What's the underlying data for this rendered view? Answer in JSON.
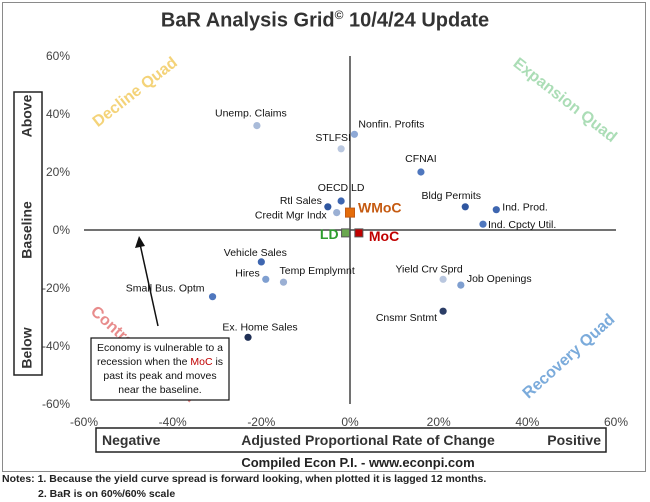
{
  "chart_data": {
    "type": "scatter",
    "title": "BaR Analysis Grid",
    "title_mark": "©",
    "title_suffix": " 10/4/24 Update",
    "xlim": [
      -60,
      60
    ],
    "ylim": [
      -60,
      60
    ],
    "x_ticks": [
      -60,
      -40,
      -20,
      0,
      20,
      40,
      60
    ],
    "y_ticks": [
      -60,
      -40,
      -20,
      0,
      20,
      40,
      60
    ],
    "x_tick_labels": [
      "-60%",
      "-40%",
      "-20%",
      "0%",
      "20%",
      "40%",
      "60%"
    ],
    "y_tick_labels": [
      "-60%",
      "-40%",
      "-20%",
      "0%",
      "20%",
      "40%",
      "60%"
    ],
    "grid": false,
    "x_axis": {
      "left_label": "Negative",
      "center_label": "Adjusted Proportional Rate of Change",
      "right_label": "Positive"
    },
    "y_axis": {
      "top_label": "Above",
      "center_label": "Baseline",
      "bottom_label": "Below"
    },
    "quadrants": [
      {
        "name": "Decline Quad",
        "position": "top-left",
        "color": "#f0c44c"
      },
      {
        "name": "Expansion Quad",
        "position": "top-right",
        "color": "#8fd19e"
      },
      {
        "name": "Contraction Quad",
        "position": "bottom-left",
        "color": "#e06666"
      },
      {
        "name": "Recovery Quad",
        "position": "bottom-right",
        "color": "#4f8fcf"
      }
    ],
    "points": [
      {
        "label": "Unemp. Claims",
        "x": -21,
        "y": 36,
        "color": "#a9bbd9"
      },
      {
        "label": "Nonfin. Profits",
        "x": 1,
        "y": 33,
        "color": "#8ea9d6"
      },
      {
        "label": "STLFSI",
        "x": -2,
        "y": 28,
        "color": "#b9c7df"
      },
      {
        "label": "CFNAI",
        "x": 16,
        "y": 20,
        "color": "#4f77be"
      },
      {
        "label": "OECD LD",
        "x": -2,
        "y": 10,
        "color": "#3e66b0"
      },
      {
        "label": "Rtl Sales",
        "x": -5,
        "y": 8,
        "color": "#2f56a0"
      },
      {
        "label": "Credit Mgr Indx",
        "x": -3,
        "y": 6,
        "color": "#9bb0d4"
      },
      {
        "label": "Bldg Permits",
        "x": 26,
        "y": 8,
        "color": "#2f56a0"
      },
      {
        "label": "Ind. Prod.",
        "x": 33,
        "y": 7,
        "color": "#3e66b0"
      },
      {
        "label": "Ind. Cpcty Util.",
        "x": 30,
        "y": 2,
        "color": "#4f77be"
      },
      {
        "label": "Vehicle Sales",
        "x": -20,
        "y": -11,
        "color": "#3e66b0"
      },
      {
        "label": "Hires",
        "x": -19,
        "y": -17,
        "color": "#7f9fd0"
      },
      {
        "label": "Temp Emplymnt",
        "x": -15,
        "y": -18,
        "color": "#9bb0d4"
      },
      {
        "label": "Small Bus. Optm",
        "x": -31,
        "y": -23,
        "color": "#4f77be"
      },
      {
        "label": "Yield Crv Sprd",
        "x": 21,
        "y": -17,
        "color": "#b9c7df"
      },
      {
        "label": "Job Openings",
        "x": 25,
        "y": -19,
        "color": "#7f9fd0"
      },
      {
        "label": "Cnsmr Sntmt",
        "x": 21,
        "y": -28,
        "color": "#2b3d66"
      },
      {
        "label": "Ex. Home Sales",
        "x": -23,
        "y": -37,
        "color": "#1f2f55"
      }
    ],
    "composites": [
      {
        "label": "WMoC",
        "x": 0,
        "y": 6,
        "color": "#e46c0a",
        "label_color": "#c55a11"
      },
      {
        "label": "MoC",
        "x": 2,
        "y": -1,
        "color": "#c00000",
        "label_color": "#c00000"
      },
      {
        "label": "LD",
        "x": -1,
        "y": -1,
        "color": "#6aa84f",
        "label_color": "#2e9e2e"
      }
    ],
    "annotation": {
      "line1": "Economy is vulnerable to a",
      "line2_before": "recession when the ",
      "line2_highlight": "MoC",
      "line2_after": " is",
      "line3": "past its peak and moves",
      "line4": "near the baseline.",
      "highlight_color": "#c00000"
    },
    "source": "Compiled Econ P.I. - www.econpi.com"
  },
  "notes": {
    "line1": "Notes: 1. Because the yield curve spread is forward looking, when plotted it is lagged 12 months.",
    "line2": "2. BaR is on 60%/60% scale"
  }
}
